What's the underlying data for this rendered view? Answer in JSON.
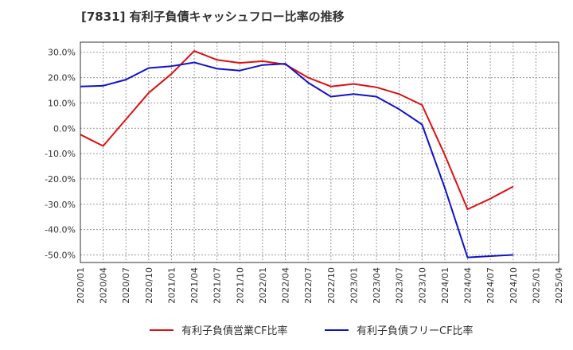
{
  "title": "[7831]  有利子負債キャッシュフロー比率の推移",
  "chart_data": {
    "type": "line",
    "title": "[7831]  有利子負債キャッシュフロー比率の推移",
    "xlabel": "",
    "ylabel": "",
    "categories": [
      "2020/01",
      "2020/04",
      "2020/07",
      "2020/10",
      "2021/01",
      "2021/04",
      "2021/07",
      "2021/10",
      "2022/01",
      "2022/04",
      "2022/07",
      "2022/10",
      "2023/01",
      "2023/04",
      "2023/07",
      "2023/10",
      "2024/01",
      "2024/04",
      "2024/07",
      "2024/10",
      "2025/01",
      "2025/04"
    ],
    "ylim": [
      -53,
      34
    ],
    "y_ticks": [
      30,
      20,
      10,
      0,
      -10,
      -20,
      -30,
      -40,
      -50
    ],
    "y_tick_labels": [
      "30.0%",
      "20.0%",
      "10.0%",
      "0.0%",
      "-10.0%",
      "-20.0%",
      "-30.0%",
      "-40.0%",
      "-50.0%"
    ],
    "grid": true,
    "legend_position": "bottom",
    "series": [
      {
        "name": "有利子負債営業CF比率",
        "color": "#dd1111",
        "values": [
          -2.5,
          -7.0,
          3.5,
          14.0,
          21.5,
          30.5,
          27.0,
          25.8,
          26.5,
          25.2,
          20.0,
          16.5,
          17.5,
          16.2,
          13.5,
          9.2,
          -10.5,
          -32.0,
          -27.8,
          -23.0,
          null,
          null
        ]
      },
      {
        "name": "有利子負債フリーCF比率",
        "color": "#1111cc",
        "values": [
          16.5,
          16.8,
          19.2,
          23.8,
          24.5,
          26.0,
          23.5,
          22.8,
          25.0,
          25.5,
          18.0,
          12.5,
          13.5,
          12.5,
          7.5,
          1.5,
          -23.5,
          -51.0,
          -50.5,
          -50.0,
          null,
          null
        ]
      }
    ]
  }
}
